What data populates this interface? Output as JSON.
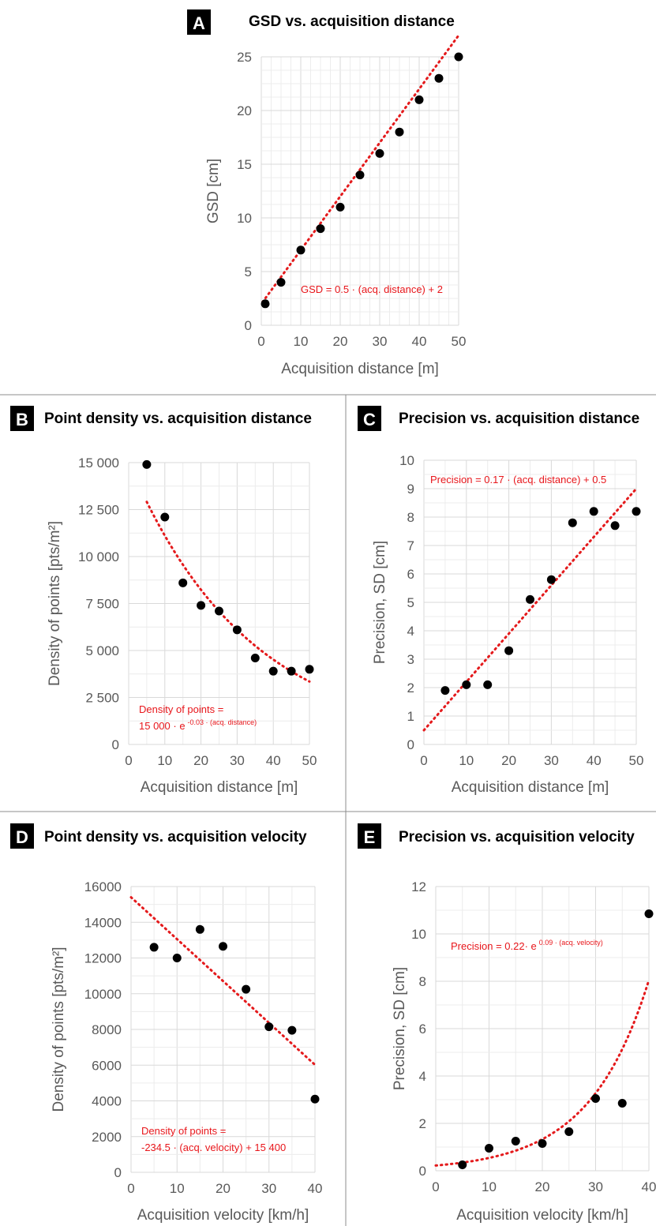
{
  "chart_data": [
    {
      "id": "A",
      "type": "scatter",
      "badge": "A",
      "title": "GSD vs. acquisition distance",
      "xlabel": "Acquisition distance [m]",
      "ylabel": "GSD [cm]",
      "xlim": [
        0,
        50
      ],
      "ylim": [
        0,
        25
      ],
      "xticks": [
        "0",
        "10",
        "20",
        "30",
        "40",
        "50"
      ],
      "yticks": [
        "0",
        "5",
        "10",
        "15",
        "20",
        "25"
      ],
      "grid": true,
      "points": {
        "x": [
          1,
          5,
          10,
          15,
          20,
          25,
          30,
          35,
          40,
          45,
          50
        ],
        "y": [
          2,
          4,
          7,
          9,
          11,
          14,
          16,
          18,
          21,
          23,
          25
        ]
      },
      "trendline": {
        "kind": "linear",
        "slope": 0.5,
        "intercept": 2,
        "x_range": [
          0.3,
          50
        ]
      },
      "equation": [
        "GSD = 0.5 · (acq. distance) + 2"
      ]
    },
    {
      "id": "B",
      "type": "scatter",
      "badge": "B",
      "title": "Point density vs. acquisition distance",
      "xlabel": "Acquisition distance [m]",
      "ylabel": "Density of points [pts/m²]",
      "xlim": [
        0,
        50
      ],
      "ylim": [
        0,
        15000
      ],
      "xticks": [
        "0",
        "10",
        "20",
        "30",
        "40",
        "50"
      ],
      "yticks": [
        "0",
        "2 500",
        "5 000",
        "7 500",
        "10 000",
        "12 500",
        "15 000"
      ],
      "grid": true,
      "points": {
        "x": [
          5,
          10,
          15,
          20,
          25,
          30,
          35,
          40,
          45,
          50
        ],
        "y": [
          14900,
          12100,
          8600,
          7400,
          7100,
          6100,
          4600,
          3900,
          3900,
          4000
        ]
      },
      "trendline": {
        "kind": "exponential",
        "a": 15000,
        "b": -0.03,
        "x_range": [
          5,
          50
        ]
      },
      "equation": [
        "Density of points =",
        "15 000 · e",
        "-0.03 ·  (acq. distance)"
      ]
    },
    {
      "id": "C",
      "type": "scatter",
      "badge": "C",
      "title": "Precision vs. acquisition distance",
      "xlabel": "Acquisition distance [m]",
      "ylabel": "Precision, SD [cm]",
      "xlim": [
        0,
        50
      ],
      "ylim": [
        0,
        10
      ],
      "xticks": [
        "0",
        "10",
        "20",
        "30",
        "40",
        "50"
      ],
      "yticks": [
        "0",
        "1",
        "2",
        "3",
        "4",
        "5",
        "6",
        "7",
        "8",
        "9",
        "10"
      ],
      "grid": true,
      "points": {
        "x": [
          5,
          10,
          15,
          20,
          25,
          30,
          35,
          40,
          45,
          50
        ],
        "y": [
          1.9,
          2.1,
          2.1,
          3.3,
          5.1,
          5.8,
          7.8,
          8.2,
          7.7,
          8.2
        ]
      },
      "trendline": {
        "kind": "linear",
        "slope": 0.17,
        "intercept": 0.5,
        "x_range": [
          0,
          50
        ]
      },
      "equation": [
        "Precision = 0.17 · (acq. distance) + 0.5"
      ]
    },
    {
      "id": "D",
      "type": "scatter",
      "badge": "D",
      "title": "Point density vs. acquisition velocity",
      "xlabel": "Acquisition velocity [km/h]",
      "ylabel": "Density of points [pts/m²]",
      "xlim": [
        0,
        40
      ],
      "ylim": [
        0,
        16000
      ],
      "xticks": [
        "0",
        "10",
        "20",
        "30",
        "40"
      ],
      "yticks": [
        "0",
        "2000",
        "4000",
        "6000",
        "8000",
        "10000",
        "12000",
        "14000",
        "16000"
      ],
      "grid": true,
      "points": {
        "x": [
          5,
          10,
          15,
          20,
          25,
          30,
          35,
          40
        ],
        "y": [
          12600,
          12000,
          13600,
          12650,
          10250,
          8150,
          7950,
          4100
        ]
      },
      "trendline": {
        "kind": "linear",
        "slope": -234.5,
        "intercept": 15400,
        "x_range": [
          0,
          40
        ]
      },
      "equation": [
        "Density of points =",
        "-234.5 · (acq. velocity) + 15 400"
      ]
    },
    {
      "id": "E",
      "type": "scatter",
      "badge": "E",
      "title": "Precision vs. acquisition velocity",
      "xlabel": "Acquisition velocity [km/h]",
      "ylabel": "Precision, SD [cm]",
      "xlim": [
        0,
        40
      ],
      "ylim": [
        0,
        12
      ],
      "xticks": [
        "0",
        "10",
        "20",
        "30",
        "40"
      ],
      "yticks": [
        "0",
        "2",
        "4",
        "6",
        "8",
        "10",
        "12"
      ],
      "grid": true,
      "points": {
        "x": [
          5,
          10,
          15,
          20,
          25,
          30,
          35,
          40
        ],
        "y": [
          0.25,
          0.95,
          1.25,
          1.15,
          1.65,
          3.05,
          2.85,
          10.85
        ]
      },
      "trendline": {
        "kind": "exponential",
        "a": 0.22,
        "b": 0.09,
        "x_range": [
          0,
          40
        ]
      },
      "equation": [
        "Precision = 0.22· e",
        "0.09 ·  (acq. velocity)"
      ]
    }
  ]
}
